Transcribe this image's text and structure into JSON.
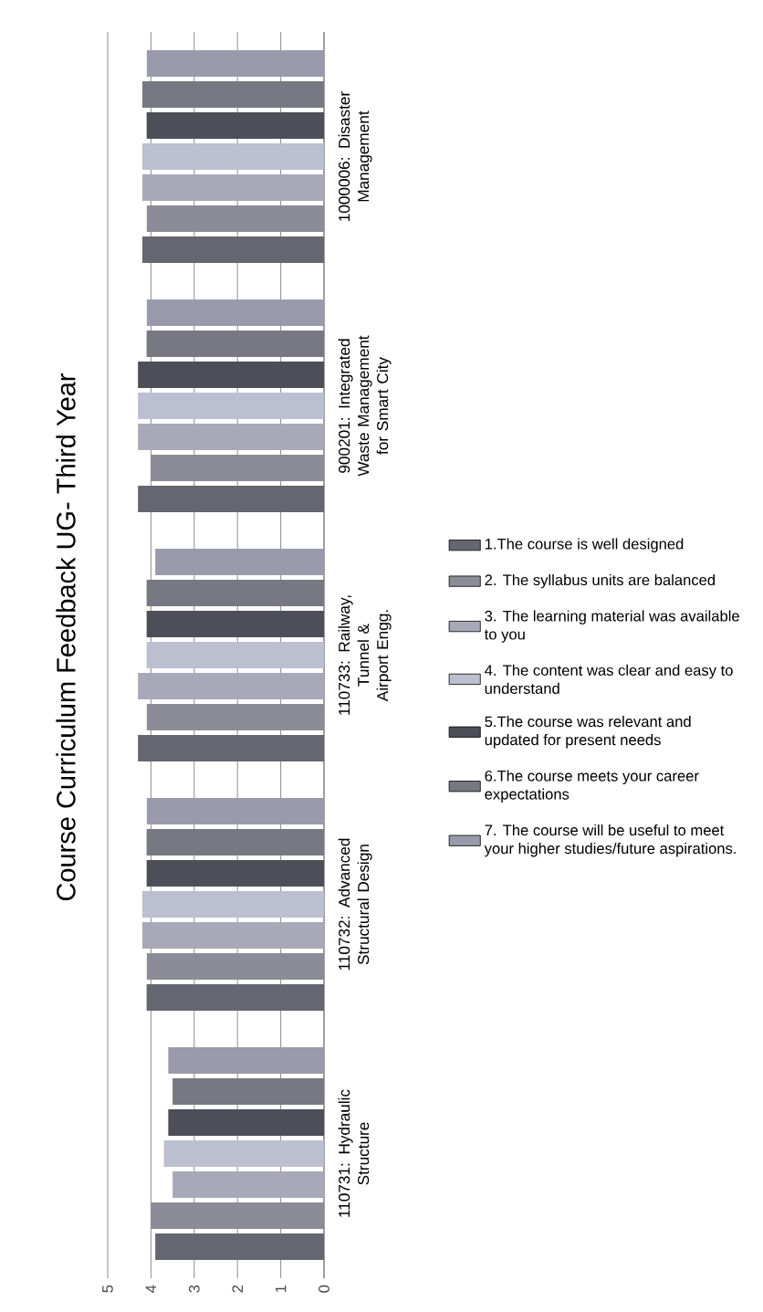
{
  "chart_data": {
    "type": "bar",
    "orientation": "horizontal",
    "title": "Course Curriculum Feedback UG- Third Year",
    "categories": [
      "1000006: Disaster Management",
      "900201: Integrated Waste Management for Smart City",
      "110733: Railway, Tunnel & Airport Engg.",
      "110732: Advanced Structural Design",
      "110731: Hydraulic Structure"
    ],
    "series": [
      {
        "name": "1.The course is well designed",
        "color": "#666670",
        "values": [
          4.2,
          4.3,
          4.3,
          4.1,
          3.9
        ]
      },
      {
        "name": "2. The syllabus units are balanced",
        "color": "#8c8c98",
        "values": [
          4.1,
          4.0,
          4.1,
          4.1,
          4.0
        ]
      },
      {
        "name": "3. The learning material was available to you",
        "color": "#a8a8b8",
        "values": [
          4.2,
          4.3,
          4.3,
          4.2,
          3.5
        ]
      },
      {
        "name": "4. The content was clear and easy to understand",
        "color": "#bcbfd0",
        "values": [
          4.2,
          4.3,
          4.1,
          4.2,
          3.7
        ]
      },
      {
        "name": "5.The course was relevant and updated for present needs",
        "color": "#4e4e58",
        "values": [
          4.1,
          4.3,
          4.1,
          4.1,
          3.6
        ]
      },
      {
        "name": "6.The course meets your career expectations",
        "color": "#787882",
        "values": [
          4.2,
          4.1,
          4.1,
          4.1,
          3.5
        ]
      },
      {
        "name": "7. The course will be useful to meet your higher studies/future aspirations.",
        "color": "#9a9aac",
        "values": [
          4.1,
          4.1,
          3.9,
          4.1,
          3.6
        ]
      }
    ],
    "xlim": [
      5,
      0
    ],
    "xticks": [
      0,
      1,
      2,
      3,
      4,
      5
    ],
    "grid": "x",
    "legend": "bottom"
  }
}
